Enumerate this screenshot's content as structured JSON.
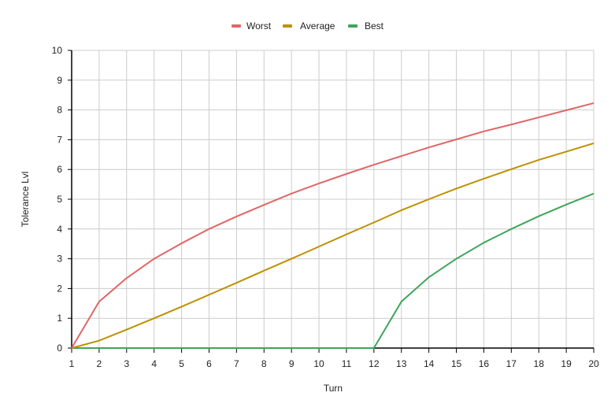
{
  "chart_data": {
    "type": "line",
    "title": "",
    "xlabel": "Turn",
    "ylabel": "Tolerance Lvl",
    "x": [
      1,
      2,
      3,
      4,
      5,
      6,
      7,
      8,
      9,
      10,
      11,
      12,
      13,
      14,
      15,
      16,
      17,
      18,
      19,
      20
    ],
    "xlim": [
      1,
      20
    ],
    "ylim": [
      0,
      10
    ],
    "yticks": [
      0,
      1,
      2,
      3,
      4,
      5,
      6,
      7,
      8,
      9,
      10
    ],
    "grid": true,
    "legend_position": "top",
    "series": [
      {
        "name": "Worst",
        "color": "#e06666",
        "values": [
          0,
          1.56,
          2.35,
          3.0,
          3.52,
          4.0,
          4.42,
          4.81,
          5.19,
          5.53,
          5.85,
          6.16,
          6.45,
          6.74,
          7.01,
          7.28,
          7.51,
          7.75,
          7.99,
          8.23
        ]
      },
      {
        "name": "Average",
        "color": "#bf9000",
        "values": [
          0,
          0.25,
          0.62,
          1.0,
          1.39,
          1.79,
          2.19,
          2.6,
          3.0,
          3.41,
          3.82,
          4.22,
          4.63,
          5.0,
          5.36,
          5.69,
          6.01,
          6.32,
          6.6,
          6.88
        ]
      },
      {
        "name": "Best",
        "color": "#3ea55c",
        "values": [
          0,
          0,
          0,
          0,
          0,
          0,
          0,
          0,
          0,
          0,
          0,
          0,
          1.56,
          2.38,
          3.0,
          3.54,
          4.0,
          4.43,
          4.82,
          5.19
        ]
      }
    ]
  },
  "legend": {
    "items": [
      {
        "label": "Worst",
        "color": "#e06666"
      },
      {
        "label": "Average",
        "color": "#bf9000"
      },
      {
        "label": "Best",
        "color": "#3ea55c"
      }
    ]
  },
  "axes": {
    "x_title": "Turn",
    "y_title": "Tolerance Lvl"
  }
}
